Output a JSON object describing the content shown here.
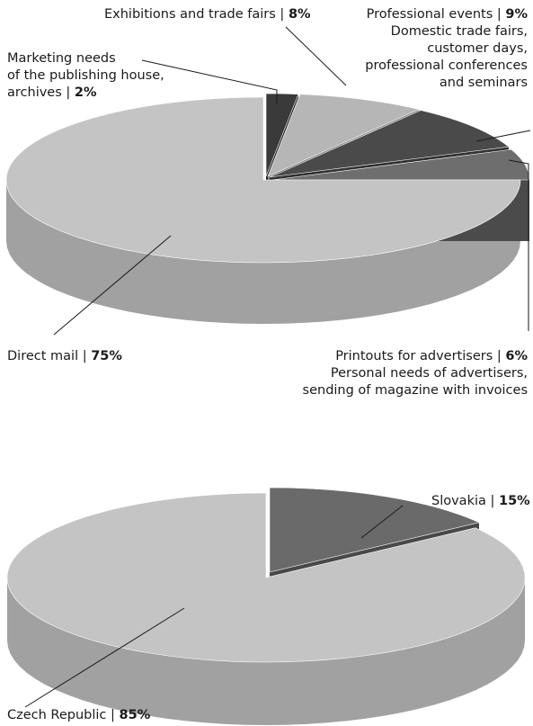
{
  "chart_data": [
    {
      "type": "pie",
      "slices": [
        {
          "name": "Direct mail",
          "value": 75,
          "label_name": "Direct mail |",
          "label_value": "75%",
          "note": []
        },
        {
          "name": "Marketing needs of the publishing house, archives",
          "value": 2,
          "label_name_lines": [
            "Marketing needs",
            "of the publishing house,",
            "archives |"
          ],
          "label_value": "2%",
          "note": []
        },
        {
          "name": "Exhibitions and trade fairs",
          "value": 8,
          "label_name": "Exhibitions and trade fairs |",
          "label_value": "8%",
          "note": []
        },
        {
          "name": "Professional events",
          "value": 9,
          "label_name": "Professional events |",
          "label_value": "9%",
          "note": [
            "Domestic trade fairs,",
            "customer days,",
            "professional conferences",
            "and seminars"
          ]
        },
        {
          "name": "Printouts for advertisers",
          "value": 6,
          "label_name": "Printouts for advertisers |",
          "label_value": "6%",
          "note": [
            "Personal needs of advertisers,",
            "sending of magazine with invoices"
          ]
        }
      ],
      "colors": {
        "Direct mail": "#c4c4c4",
        "Marketing needs of the publishing house, archives": "#3a3a3a",
        "Exhibitions and trade fairs": "#b6b6b6",
        "Professional events": "#4a4a4a",
        "Printouts for advertisers": "#6e6e6e"
      }
    },
    {
      "type": "pie",
      "slices": [
        {
          "name": "Czech Republic",
          "value": 85,
          "label_name": "Czech Republic |",
          "label_value": "85%"
        },
        {
          "name": "Slovakia",
          "value": 15,
          "label_name": "Slovakia |",
          "label_value": "15%"
        }
      ],
      "colors": {
        "Czech Republic": "#c4c4c4",
        "Slovakia": "#6a6a6a"
      }
    }
  ]
}
